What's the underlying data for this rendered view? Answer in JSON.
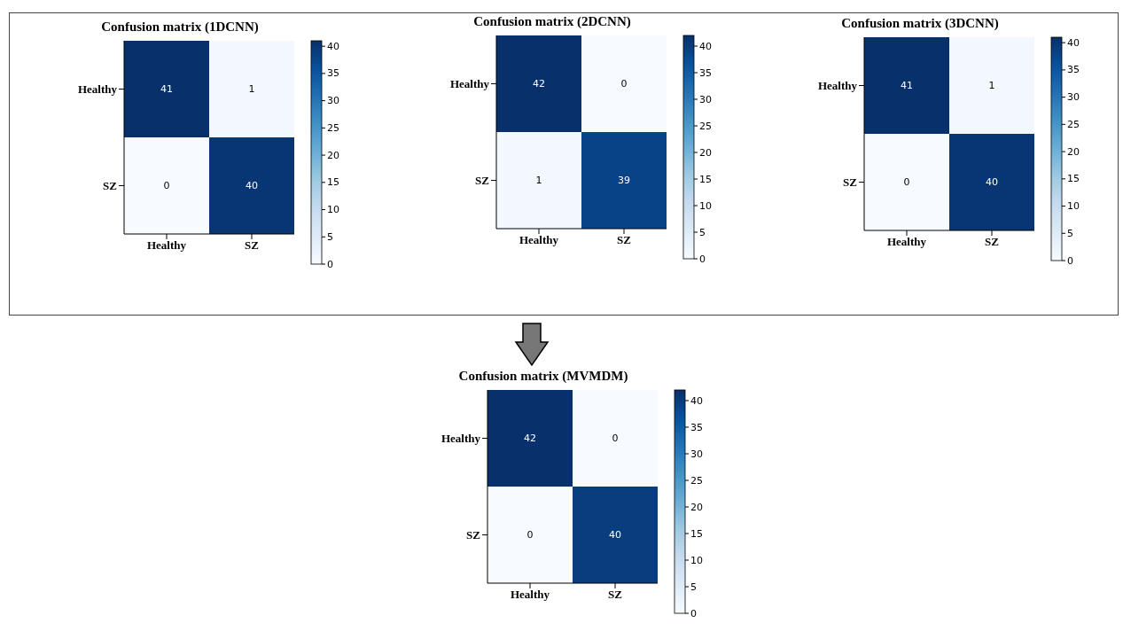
{
  "chart_data": [
    {
      "type": "heatmap",
      "title": "Confusion matrix (1DCNN)",
      "categories": [
        "Healthy",
        "SZ"
      ],
      "y_categories": [
        "Healthy",
        "SZ"
      ],
      "cells": [
        [
          41,
          1
        ],
        [
          0,
          40
        ]
      ],
      "clim": [
        0,
        41
      ],
      "cticks": [
        0,
        5,
        10,
        15,
        20,
        25,
        30,
        35,
        40
      ],
      "data_labels": true
    },
    {
      "type": "heatmap",
      "title": "Confusion matrix (2DCNN)",
      "categories": [
        "Healthy",
        "SZ"
      ],
      "y_categories": [
        "Healthy",
        "SZ"
      ],
      "cells": [
        [
          42,
          0
        ],
        [
          1,
          39
        ]
      ],
      "clim": [
        0,
        42
      ],
      "cticks": [
        0,
        5,
        10,
        15,
        20,
        25,
        30,
        35,
        40
      ],
      "data_labels": true
    },
    {
      "type": "heatmap",
      "title": "Confusion matrix (3DCNN)",
      "categories": [
        "Healthy",
        "SZ"
      ],
      "y_categories": [
        "Healthy",
        "SZ"
      ],
      "cells": [
        [
          41,
          1
        ],
        [
          0,
          40
        ]
      ],
      "clim": [
        0,
        41
      ],
      "cticks": [
        0,
        5,
        10,
        15,
        20,
        25,
        30,
        35,
        40
      ],
      "data_labels": true
    },
    {
      "type": "heatmap",
      "title": "Confusion matrix (MVMDM)",
      "categories": [
        "Healthy",
        "SZ"
      ],
      "y_categories": [
        "Healthy",
        "SZ"
      ],
      "cells": [
        [
          42,
          0
        ],
        [
          0,
          40
        ]
      ],
      "clim": [
        0,
        42
      ],
      "cticks": [
        0,
        5,
        10,
        15,
        20,
        25,
        30,
        35,
        40
      ],
      "data_labels": true
    }
  ]
}
